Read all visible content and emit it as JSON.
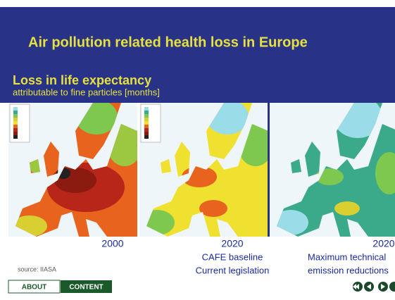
{
  "header": {
    "title": "Air pollution related health loss in Europe"
  },
  "subtitle": {
    "title": "Loss in life expectancy",
    "caption": "attributable to fine particles [months]"
  },
  "panels": [
    {
      "year": "2000",
      "lines": []
    },
    {
      "year": "2020",
      "lines": [
        "CAFE baseline",
        "Current legislation"
      ]
    },
    {
      "year": "2020",
      "lines": [
        "Maximum technical",
        "emission reductions"
      ]
    }
  ],
  "source": "source: IIASA",
  "nav": {
    "buttons": [
      "ABOUT",
      "CONTENT"
    ]
  }
}
